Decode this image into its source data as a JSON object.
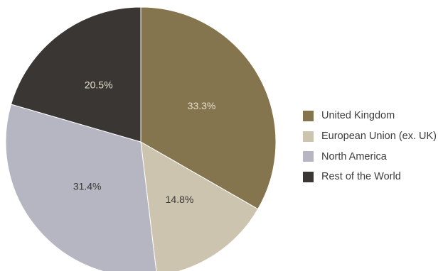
{
  "chart_data": {
    "type": "pie",
    "categories": [
      "United Kingdom",
      "European Union (ex. UK)",
      "North America",
      "Rest of the World"
    ],
    "values": [
      33.3,
      14.8,
      31.4,
      20.5
    ],
    "value_labels": [
      "33.3%",
      "14.8%",
      "31.4%",
      "20.5%"
    ],
    "colors": [
      "#84754e",
      "#cdc4b0",
      "#b6b6c2",
      "#3a3634"
    ],
    "label_colors": [
      "#e6e0cc",
      "#3a3634",
      "#3a3634",
      "#e6e0cc"
    ],
    "start_angle_deg": 0,
    "direction": "clockwise",
    "legend_position": "right",
    "title": ""
  },
  "legend": {
    "items": [
      {
        "label": "United Kingdom",
        "color": "#84754e"
      },
      {
        "label": "European Union (ex. UK)",
        "color": "#cdc4b0"
      },
      {
        "label": "North America",
        "color": "#b6b6c2"
      },
      {
        "label": "Rest of the World",
        "color": "#3a3634"
      }
    ]
  }
}
